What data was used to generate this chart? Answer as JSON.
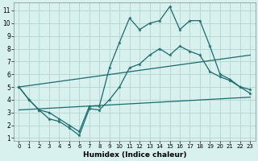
{
  "xlabel": "Humidex (Indice chaleur)",
  "bg_color": "#d8f0ee",
  "line_color": "#1a6b6b",
  "grid_color": "#b8d8d4",
  "xlim": [
    -0.5,
    23.5
  ],
  "ylim": [
    0.8,
    11.6
  ],
  "xticks": [
    0,
    1,
    2,
    3,
    4,
    5,
    6,
    7,
    8,
    9,
    10,
    11,
    12,
    13,
    14,
    15,
    16,
    17,
    18,
    19,
    20,
    21,
    22,
    23
  ],
  "yticks": [
    1,
    2,
    3,
    4,
    5,
    6,
    7,
    8,
    9,
    10,
    11
  ],
  "series1_x": [
    0,
    1,
    2,
    3,
    4,
    5,
    6,
    7,
    8,
    9,
    10,
    11,
    12,
    13,
    14,
    15,
    16,
    17,
    18,
    19,
    20,
    21,
    22,
    23
  ],
  "series1_y": [
    5.0,
    4.0,
    3.2,
    3.0,
    2.5,
    2.0,
    1.5,
    3.5,
    3.5,
    6.5,
    8.5,
    10.4,
    9.5,
    10.0,
    10.2,
    11.3,
    9.5,
    10.2,
    10.2,
    8.2,
    6.0,
    5.6,
    5.0,
    4.8
  ],
  "series2_x": [
    0,
    1,
    2,
    3,
    4,
    5,
    6,
    7,
    8,
    9,
    10,
    11,
    12,
    13,
    14,
    15,
    16,
    17,
    18,
    19,
    20,
    21,
    22,
    23
  ],
  "series2_y": [
    5.0,
    4.0,
    3.2,
    2.5,
    2.3,
    1.8,
    1.2,
    3.3,
    3.2,
    4.0,
    5.0,
    6.5,
    6.8,
    7.5,
    8.0,
    7.5,
    8.2,
    7.8,
    7.5,
    6.2,
    5.8,
    5.5,
    5.0,
    4.5
  ],
  "line3_x": [
    0,
    23
  ],
  "line3_y": [
    5.0,
    7.5
  ],
  "line4_x": [
    0,
    23
  ],
  "line4_y": [
    3.2,
    4.2
  ]
}
